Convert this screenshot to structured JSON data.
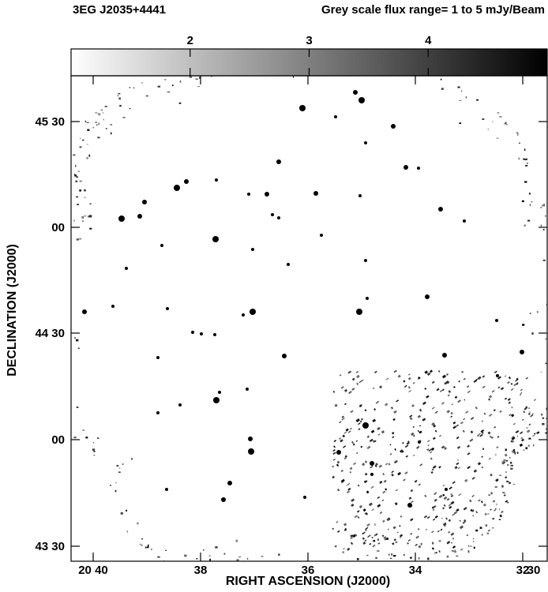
{
  "title": "3EG J2035+4441",
  "subtitle": "Grey scale flux range= 1 to 5 mJy/Beam",
  "colorbar": {
    "min": 1,
    "max": 5,
    "tick_values": [
      2,
      3,
      4
    ],
    "tick_labels": [
      "2",
      "3",
      "4"
    ],
    "color_low": "#ffffff",
    "color_high": "#000000"
  },
  "axes": {
    "xlabel": "RIGHT ASCENSION (J2000)",
    "ylabel": "DECLINATION (J2000)",
    "x_ticks": [
      {
        "value": "20 40",
        "label": "20 40"
      },
      {
        "value": "20 38",
        "label": "38"
      },
      {
        "value": "20 36",
        "label": "36"
      },
      {
        "value": "20 34",
        "label": "34"
      },
      {
        "value": "20 32",
        "label": "32"
      },
      {
        "value": "20 30",
        "label": "30"
      }
    ],
    "y_ticks": [
      {
        "value": "45 30",
        "label": "45 30"
      },
      {
        "value": "45 00",
        "label": "00"
      },
      {
        "value": "44 30",
        "label": "44 30"
      },
      {
        "value": "44 00",
        "label": "00"
      },
      {
        "value": "43 30",
        "label": "43 30"
      }
    ]
  }
}
